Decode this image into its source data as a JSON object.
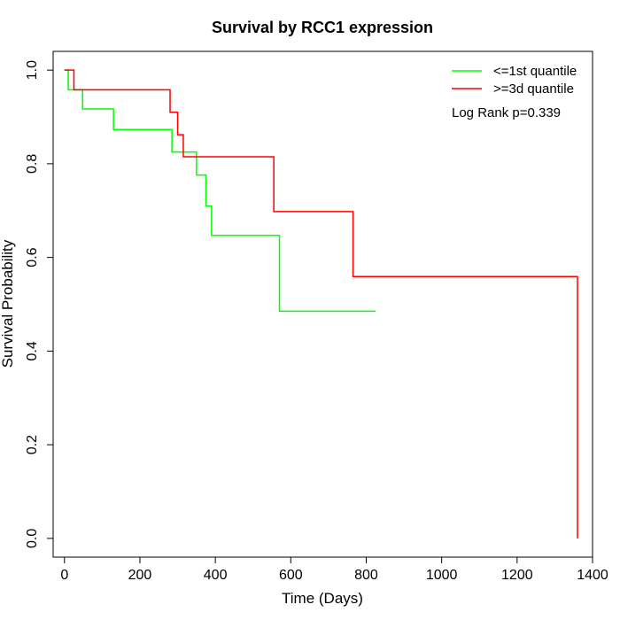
{
  "chart_data": {
    "type": "line",
    "title": "Survival by RCC1 expression",
    "xlabel": "Time (Days)",
    "ylabel": "Survival Probability",
    "xlim": [
      -30,
      1400
    ],
    "ylim": [
      -0.04,
      1.04
    ],
    "x_ticks": [
      0,
      200,
      400,
      600,
      800,
      1000,
      1200,
      1400
    ],
    "y_ticks": [
      0.0,
      0.2,
      0.4,
      0.6,
      0.8,
      1.0
    ],
    "x_tick_labels": [
      "0",
      "200",
      "400",
      "600",
      "800",
      "1000",
      "1200",
      "1400"
    ],
    "y_tick_labels": [
      "0.0",
      "0.2",
      "0.4",
      "0.6",
      "0.8",
      "1.0"
    ],
    "legend_position": "top-right",
    "annotation": "Log Rank p=0.339",
    "series": [
      {
        "name": "<=1st quantile",
        "color": "#00ff00",
        "step_x": [
          0,
          10,
          48,
          130,
          285,
          350,
          375,
          390,
          570,
          825
        ],
        "step_y": [
          1.0,
          0.958,
          0.917,
          0.873,
          0.825,
          0.776,
          0.71,
          0.647,
          0.485,
          0.485
        ]
      },
      {
        "name": ">=3d quantile",
        "color": "#ff0000",
        "step_x": [
          0,
          25,
          280,
          300,
          315,
          555,
          765,
          1360,
          1360
        ],
        "step_y": [
          1.0,
          0.958,
          0.91,
          0.862,
          0.815,
          0.698,
          0.559,
          0.559,
          0.0
        ]
      }
    ]
  }
}
